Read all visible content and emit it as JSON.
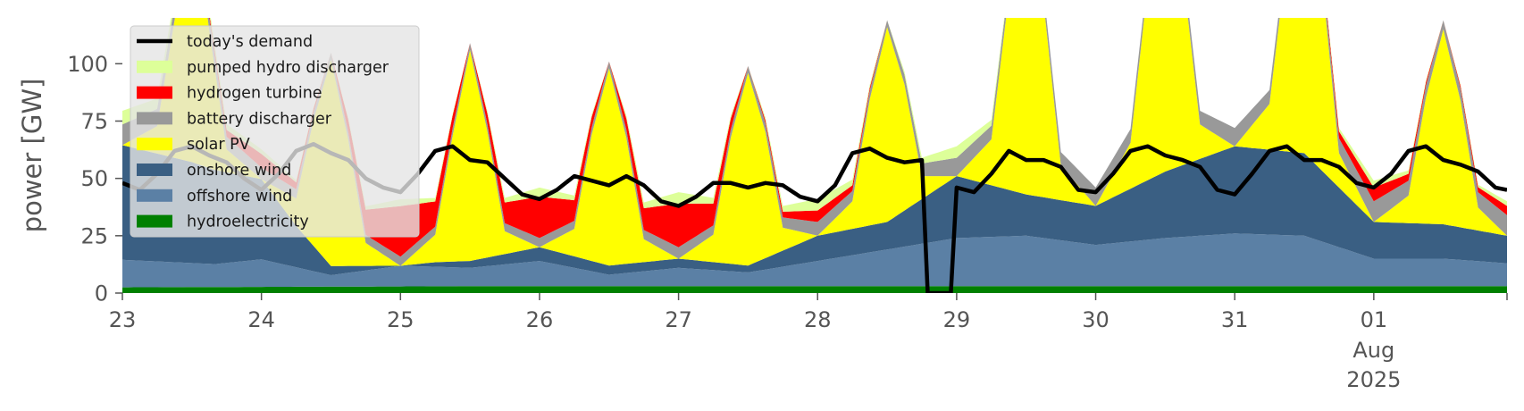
{
  "chart_data": {
    "type": "area",
    "ylabel": "power [GW]",
    "ylim": [
      0,
      120
    ],
    "yticks": [
      0,
      25,
      50,
      75,
      100
    ],
    "xlim": [
      "2025-07-23T00:00",
      "2025-08-01T23:00"
    ],
    "xticks": [
      {
        "x": "2025-07-23",
        "label": "23"
      },
      {
        "x": "2025-07-24",
        "label": "24"
      },
      {
        "x": "2025-07-25",
        "label": "25"
      },
      {
        "x": "2025-07-26",
        "label": "26"
      },
      {
        "x": "2025-07-27",
        "label": "27"
      },
      {
        "x": "2025-07-28",
        "label": "28"
      },
      {
        "x": "2025-07-29",
        "label": "29"
      },
      {
        "x": "2025-07-30",
        "label": "30"
      },
      {
        "x": "2025-07-31",
        "label": "31"
      },
      {
        "x": "2025-08-01",
        "label": "01",
        "sub": [
          "Aug",
          "2025"
        ]
      }
    ],
    "stacking_order": [
      "hydroelectricity",
      "offshore wind",
      "onshore wind",
      "solar PV",
      "battery discharger",
      "hydrogen turbine",
      "pumped hydro discharger"
    ],
    "series": [
      {
        "name": "hydroelectricity",
        "color": "#008000",
        "x": [
          "2025-07-23T00:00",
          "2025-07-25T12:00",
          "2025-07-28T00:00",
          "2025-07-30T12:00",
          "2025-08-01T23:00"
        ],
        "values": [
          2.5,
          3,
          3,
          3,
          3
        ]
      },
      {
        "name": "offshore wind",
        "color": "#5b80a5",
        "x": [
          "2025-07-23T00:00",
          "2025-07-23T08:00",
          "2025-07-23T16:00",
          "2025-07-24T00:00",
          "2025-07-24T12:00",
          "2025-07-25T00:00",
          "2025-07-25T12:00",
          "2025-07-26T00:00",
          "2025-07-26T12:00",
          "2025-07-27T00:00",
          "2025-07-27T12:00",
          "2025-07-28T00:00",
          "2025-07-28T12:00",
          "2025-07-29T00:00",
          "2025-07-29T12:00",
          "2025-07-30T00:00",
          "2025-07-30T12:00",
          "2025-07-31T00:00",
          "2025-07-31T12:00",
          "2025-08-01T00:00",
          "2025-08-01T12:00",
          "2025-08-01T23:00"
        ],
        "values": [
          12,
          11,
          10,
          12,
          5,
          9,
          8,
          11,
          5,
          8,
          6,
          11,
          16,
          21,
          22,
          18,
          21,
          23,
          22,
          12,
          12,
          10
        ]
      },
      {
        "name": "onshore wind",
        "color": "#3a5f83",
        "x": [
          "2025-07-23T00:00",
          "2025-07-23T12:00",
          "2025-07-24T00:00",
          "2025-07-24T06:00",
          "2025-07-24T12:00",
          "2025-07-25T00:00",
          "2025-07-25T06:00",
          "2025-07-25T12:00",
          "2025-07-26T00:00",
          "2025-07-26T12:00",
          "2025-07-27T00:00",
          "2025-07-27T12:00",
          "2025-07-28T00:00",
          "2025-07-28T12:00",
          "2025-07-29T00:00",
          "2025-07-29T12:00",
          "2025-07-30T00:00",
          "2025-07-30T12:00",
          "2025-07-31T00:00",
          "2025-07-31T12:00",
          "2025-08-01T00:00",
          "2025-08-01T12:00",
          "2025-08-01T23:00"
        ],
        "values": [
          50,
          44,
          35,
          18,
          4,
          0,
          2,
          3,
          6,
          4,
          4,
          3,
          11,
          12,
          27,
          18,
          17,
          29,
          38,
          36,
          16,
          15,
          12
        ]
      },
      {
        "name": "solar PV",
        "color": "#ffff00",
        "x": [
          "2025-07-23T00:00",
          "2025-07-23T06:00",
          "2025-07-23T09:00",
          "2025-07-23T12:00",
          "2025-07-23T15:00",
          "2025-07-23T18:00",
          "2025-07-24T00:00",
          "2025-07-24T06:00",
          "2025-07-24T09:00",
          "2025-07-24T12:00",
          "2025-07-24T15:00",
          "2025-07-24T18:00",
          "2025-07-25T00:00",
          "2025-07-25T06:00",
          "2025-07-25T09:00",
          "2025-07-25T12:00",
          "2025-07-25T15:00",
          "2025-07-25T18:00",
          "2025-07-26T00:00",
          "2025-07-26T06:00",
          "2025-07-26T09:00",
          "2025-07-26T12:00",
          "2025-07-26T15:00",
          "2025-07-26T18:00",
          "2025-07-27T00:00",
          "2025-07-27T06:00",
          "2025-07-27T09:00",
          "2025-07-27T12:00",
          "2025-07-27T15:00",
          "2025-07-27T18:00",
          "2025-07-28T00:00",
          "2025-07-28T06:00",
          "2025-07-28T09:00",
          "2025-07-28T12:00",
          "2025-07-28T15:00",
          "2025-07-28T18:00",
          "2025-07-29T00:00",
          "2025-07-29T06:00",
          "2025-07-29T09:00",
          "2025-07-29T12:00",
          "2025-07-29T15:00",
          "2025-07-29T18:00",
          "2025-07-30T00:00",
          "2025-07-30T06:00",
          "2025-07-30T09:00",
          "2025-07-30T12:00",
          "2025-07-30T15:00",
          "2025-07-30T18:00",
          "2025-07-31T00:00",
          "2025-07-31T06:00",
          "2025-07-31T09:00",
          "2025-07-31T12:00",
          "2025-07-31T15:00",
          "2025-07-31T18:00",
          "2025-08-01T00:00",
          "2025-08-01T06:00",
          "2025-08-01T09:00",
          "2025-08-01T12:00",
          "2025-08-01T15:00",
          "2025-08-01T18:00",
          "2025-08-01T23:00"
        ],
        "values": [
          0,
          12,
          60,
          115,
          60,
          10,
          0,
          12,
          55,
          90,
          55,
          10,
          0,
          12,
          55,
          92,
          55,
          10,
          0,
          12,
          55,
          86,
          55,
          10,
          0,
          12,
          55,
          84,
          55,
          10,
          0,
          12,
          55,
          85,
          55,
          10,
          0,
          20,
          85,
          135,
          85,
          15,
          0,
          20,
          85,
          130,
          85,
          15,
          0,
          20,
          85,
          125,
          85,
          15,
          0,
          12,
          55,
          85,
          55,
          10,
          0
        ]
      },
      {
        "name": "battery discharger",
        "color": "#999999",
        "x": [
          "2025-07-23T00:00",
          "2025-07-23T12:00",
          "2025-07-24T00:00",
          "2025-07-24T12:00",
          "2025-07-25T00:00",
          "2025-07-25T12:00",
          "2025-07-26T00:00",
          "2025-07-26T12:00",
          "2025-07-27T00:00",
          "2025-07-27T12:00",
          "2025-07-28T00:00",
          "2025-07-28T12:00",
          "2025-07-29T00:00",
          "2025-07-29T12:00",
          "2025-07-30T00:00",
          "2025-07-30T12:00",
          "2025-07-31T00:00",
          "2025-07-31T12:00",
          "2025-08-01T00:00",
          "2025-08-01T12:00",
          "2025-08-01T23:00"
        ],
        "values": [
          9,
          6,
          5,
          3,
          4,
          3,
          4,
          3,
          5,
          3,
          6,
          3,
          8,
          4,
          8,
          4,
          8,
          4,
          9,
          4,
          9
        ]
      },
      {
        "name": "hydrogen turbine",
        "color": "#ff0000",
        "x": [
          "2025-07-23T00:00",
          "2025-07-23T12:00",
          "2025-07-24T00:00",
          "2025-07-24T12:00",
          "2025-07-25T00:00",
          "2025-07-25T12:00",
          "2025-07-26T00:00",
          "2025-07-26T12:00",
          "2025-07-27T00:00",
          "2025-07-27T12:00",
          "2025-07-28T00:00",
          "2025-07-28T12:00",
          "2025-07-29T00:00",
          "2025-07-29T12:00",
          "2025-07-30T00:00",
          "2025-07-30T12:00",
          "2025-07-31T00:00",
          "2025-07-31T12:00",
          "2025-08-01T00:00",
          "2025-08-01T12:00",
          "2025-08-01T23:00"
        ],
        "values": [
          0,
          0,
          6,
          0,
          22,
          0,
          18,
          0,
          19,
          0,
          5,
          0,
          0,
          0,
          0,
          0,
          0,
          0,
          6,
          0,
          4
        ]
      },
      {
        "name": "pumped hydro discharger",
        "color": "#ddff99",
        "x": [
          "2025-07-23T00:00",
          "2025-07-23T12:00",
          "2025-07-24T00:00",
          "2025-07-24T12:00",
          "2025-07-25T00:00",
          "2025-07-25T12:00",
          "2025-07-26T00:00",
          "2025-07-26T12:00",
          "2025-07-27T00:00",
          "2025-07-27T12:00",
          "2025-07-28T00:00",
          "2025-07-28T12:00",
          "2025-07-29T00:00",
          "2025-07-29T12:00",
          "2025-07-30T00:00",
          "2025-07-30T12:00",
          "2025-07-31T00:00",
          "2025-07-31T12:00",
          "2025-08-01T00:00",
          "2025-08-01T12:00",
          "2025-08-01T23:00"
        ],
        "values": [
          6,
          3,
          2,
          0,
          3,
          0,
          4,
          0,
          5,
          0,
          5,
          0,
          5,
          0,
          0,
          0,
          0,
          0,
          3,
          0,
          2
        ]
      },
      {
        "name": "today's demand",
        "color": "#000000",
        "kind": "line",
        "x": [
          "2025-07-23T00:00",
          "2025-07-23T03:00",
          "2025-07-23T06:00",
          "2025-07-23T09:00",
          "2025-07-23T12:00",
          "2025-07-23T15:00",
          "2025-07-23T18:00",
          "2025-07-23T21:00",
          "2025-07-24T00:00",
          "2025-07-24T03:00",
          "2025-07-24T06:00",
          "2025-07-24T09:00",
          "2025-07-24T12:00",
          "2025-07-24T15:00",
          "2025-07-24T18:00",
          "2025-07-24T21:00",
          "2025-07-25T00:00",
          "2025-07-25T03:00",
          "2025-07-25T06:00",
          "2025-07-25T09:00",
          "2025-07-25T12:00",
          "2025-07-25T15:00",
          "2025-07-25T18:00",
          "2025-07-25T21:00",
          "2025-07-26T00:00",
          "2025-07-26T03:00",
          "2025-07-26T06:00",
          "2025-07-26T09:00",
          "2025-07-26T12:00",
          "2025-07-26T15:00",
          "2025-07-26T18:00",
          "2025-07-26T21:00",
          "2025-07-27T00:00",
          "2025-07-27T03:00",
          "2025-07-27T06:00",
          "2025-07-27T09:00",
          "2025-07-27T12:00",
          "2025-07-27T15:00",
          "2025-07-27T18:00",
          "2025-07-27T21:00",
          "2025-07-28T00:00",
          "2025-07-28T03:00",
          "2025-07-28T06:00",
          "2025-07-28T09:00",
          "2025-07-28T12:00",
          "2025-07-28T15:00",
          "2025-07-28T18:00",
          "2025-07-28T19:00",
          "2025-07-28T20:00",
          "2025-07-28T21:00",
          "2025-07-28T22:00",
          "2025-07-28T23:00",
          "2025-07-29T00:00",
          "2025-07-29T03:00",
          "2025-07-29T06:00",
          "2025-07-29T09:00",
          "2025-07-29T12:00",
          "2025-07-29T15:00",
          "2025-07-29T18:00",
          "2025-07-29T21:00",
          "2025-07-30T00:00",
          "2025-07-30T03:00",
          "2025-07-30T06:00",
          "2025-07-30T09:00",
          "2025-07-30T12:00",
          "2025-07-30T15:00",
          "2025-07-30T18:00",
          "2025-07-30T21:00",
          "2025-07-31T00:00",
          "2025-07-31T03:00",
          "2025-07-31T06:00",
          "2025-07-31T09:00",
          "2025-07-31T12:00",
          "2025-07-31T15:00",
          "2025-07-31T18:00",
          "2025-07-31T21:00",
          "2025-08-01T00:00",
          "2025-08-01T03:00",
          "2025-08-01T06:00",
          "2025-08-01T09:00",
          "2025-08-01T12:00",
          "2025-08-01T15:00",
          "2025-08-01T18:00",
          "2025-08-01T21:00",
          "2025-08-01T23:00"
        ],
        "values": [
          48,
          45,
          52,
          62,
          64,
          60,
          57,
          50,
          45,
          52,
          62,
          65,
          61,
          58,
          50,
          46,
          44,
          52,
          62,
          64,
          58,
          57,
          50,
          43,
          41,
          45,
          51,
          49,
          47,
          51,
          47,
          40,
          38,
          42,
          48,
          48,
          46,
          48,
          47,
          42,
          40,
          47,
          61,
          63,
          59,
          57,
          58,
          0,
          0,
          0,
          0,
          0,
          46,
          44,
          52,
          62,
          58,
          58,
          55,
          45,
          44,
          52,
          62,
          64,
          60,
          58,
          55,
          45,
          43,
          52,
          62,
          64,
          58,
          58,
          55,
          48,
          46,
          52,
          62,
          64,
          58,
          56,
          53,
          46,
          45
        ]
      }
    ],
    "legend_entries": [
      "today's demand",
      "pumped hydro discharger",
      "hydrogen turbine",
      "battery discharger",
      "solar PV",
      "onshore wind",
      "offshore wind",
      "hydroelectricity"
    ],
    "legend": "upper-left",
    "grid": false
  }
}
